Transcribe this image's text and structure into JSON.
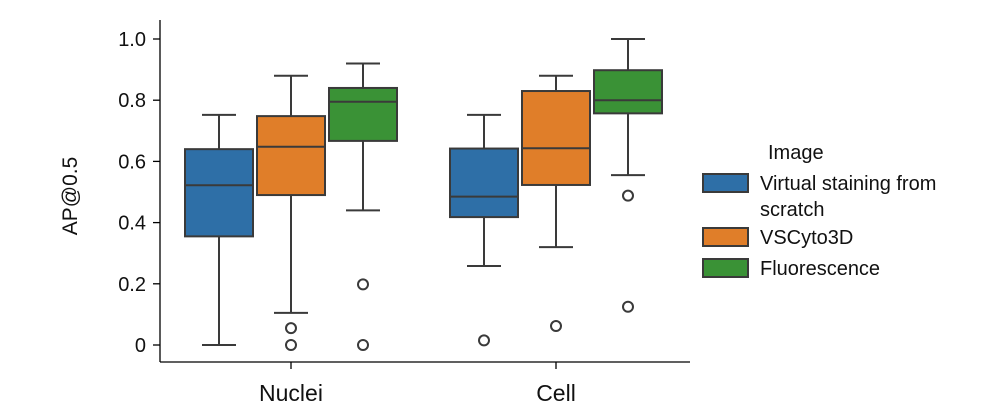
{
  "chart_data": {
    "type": "box",
    "title": "",
    "xlabel": "",
    "ylabel": "AP@0.5",
    "ylim": [
      -0.05,
      1.05
    ],
    "yticks": [
      0,
      0.2,
      0.4,
      0.6,
      0.8,
      1.0
    ],
    "ytick_labels": [
      "0",
      "0.2",
      "0.4",
      "0.6",
      "0.8",
      "1.0"
    ],
    "categories": [
      "Nuclei",
      "Cell"
    ],
    "legend": {
      "title": "Image",
      "position": "right",
      "entries": [
        {
          "lines": [
            "Virtual staining from",
            "scratch"
          ]
        },
        {
          "lines": [
            "VSCyto3D"
          ]
        },
        {
          "lines": [
            "Fluorescence"
          ]
        }
      ]
    },
    "series": [
      {
        "name": "Virtual staining from scratch",
        "color": "#2e6fa7",
        "boxes": [
          {
            "whisker_low": 0.0,
            "q1": 0.355,
            "median": 0.522,
            "q3": 0.64,
            "whisker_high": 0.752,
            "outliers": []
          },
          {
            "whisker_low": 0.258,
            "q1": 0.418,
            "median": 0.485,
            "q3": 0.642,
            "whisker_high": 0.752,
            "outliers": [
              0.015
            ]
          }
        ]
      },
      {
        "name": "VSCyto3D",
        "color": "#e07e29",
        "boxes": [
          {
            "whisker_low": 0.105,
            "q1": 0.49,
            "median": 0.648,
            "q3": 0.748,
            "whisker_high": 0.88,
            "outliers": [
              0.055,
              0.0
            ]
          },
          {
            "whisker_low": 0.32,
            "q1": 0.523,
            "median": 0.643,
            "q3": 0.83,
            "whisker_high": 0.88,
            "outliers": [
              0.062
            ]
          }
        ]
      },
      {
        "name": "Fluorescence",
        "color": "#3a9236",
        "boxes": [
          {
            "whisker_low": 0.44,
            "q1": 0.667,
            "median": 0.795,
            "q3": 0.84,
            "whisker_high": 0.92,
            "outliers": [
              0.198,
              0.0
            ]
          },
          {
            "whisker_low": 0.555,
            "q1": 0.757,
            "median": 0.8,
            "q3": 0.898,
            "whisker_high": 1.0,
            "outliers": [
              0.488,
              0.125
            ]
          }
        ]
      }
    ]
  }
}
